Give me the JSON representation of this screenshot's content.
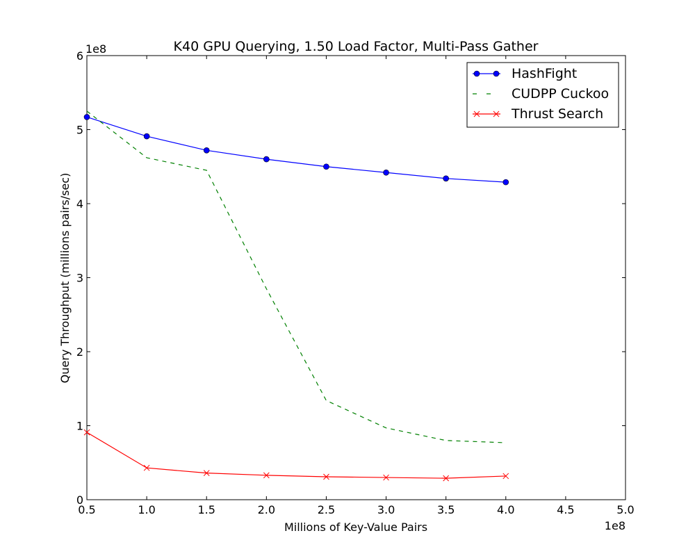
{
  "chart_data": {
    "type": "line",
    "title": "K40 GPU Querying, 1.50 Load Factor, Multi-Pass Gather",
    "xlabel": "Millions of Key-Value Pairs",
    "ylabel": "Query Throughput (millions pairs/sec)",
    "x_offset_label": "1e8",
    "y_offset_label": "1e8",
    "xlim": [
      0.5,
      5.0
    ],
    "ylim": [
      0,
      6
    ],
    "xticks": [
      "0.5",
      "1.0",
      "1.5",
      "2.0",
      "2.5",
      "3.0",
      "3.5",
      "4.0",
      "4.5",
      "5.0"
    ],
    "yticks": [
      "0",
      "1",
      "2",
      "3",
      "4",
      "5",
      "6"
    ],
    "grid": false,
    "legend_position": "top-right",
    "x": [
      0.5,
      1.0,
      1.5,
      2.0,
      2.5,
      3.0,
      3.5,
      4.0
    ],
    "series": [
      {
        "name": "HashFight",
        "values": [
          5.17,
          4.91,
          4.72,
          4.6,
          4.5,
          4.42,
          4.34,
          4.29
        ],
        "color": "#0000ff",
        "style": "solid",
        "marker": "circle"
      },
      {
        "name": "CUDPP Cuckoo",
        "values": [
          5.25,
          4.62,
          4.45,
          2.85,
          1.34,
          0.97,
          0.8,
          0.77
        ],
        "color": "#008000",
        "style": "dashed",
        "marker": "none"
      },
      {
        "name": "Thrust Search",
        "values": [
          0.91,
          0.43,
          0.36,
          0.33,
          0.31,
          0.3,
          0.29,
          0.32
        ],
        "color": "#ff0000",
        "style": "solid",
        "marker": "x"
      }
    ]
  }
}
